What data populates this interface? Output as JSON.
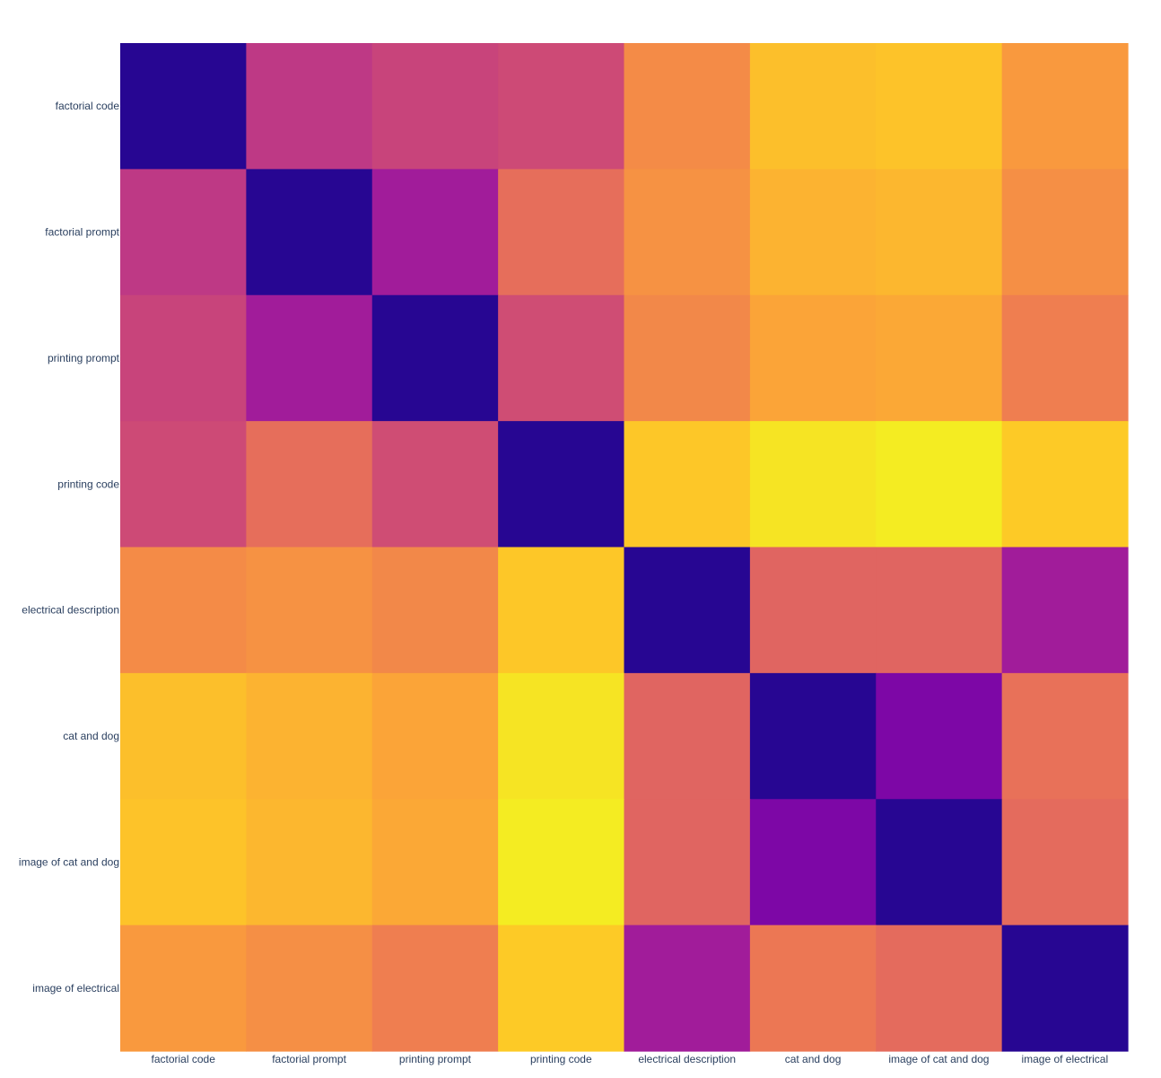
{
  "chart_data": {
    "type": "heatmap",
    "title": "",
    "xlabel": "",
    "ylabel": "",
    "colorscale": "plasma",
    "colorscale_stops": [
      "#0d0887",
      "#46039f",
      "#7201a8",
      "#9c179e",
      "#bd3786",
      "#d8576b",
      "#ed7953",
      "#fb9f3a",
      "#fdca26",
      "#f0f921"
    ],
    "zrange": [
      0,
      1
    ],
    "colorbar": false,
    "x": [
      "factorial code",
      "factorial prompt",
      "printing prompt",
      "printing code",
      "electrical description",
      "cat and dog",
      "image of cat and dog",
      "image of electrical"
    ],
    "y": [
      "factorial code",
      "factorial prompt",
      "printing prompt",
      "printing code",
      "electrical description",
      "cat and dog",
      "image of cat and dog",
      "image of electrical"
    ],
    "z": [
      [
        0.05,
        0.45,
        0.49,
        0.51,
        0.72,
        0.86,
        0.87,
        0.76
      ],
      [
        0.45,
        0.05,
        0.35,
        0.63,
        0.74,
        0.83,
        0.84,
        0.73
      ],
      [
        0.49,
        0.35,
        0.05,
        0.52,
        0.71,
        0.79,
        0.8,
        0.68
      ],
      [
        0.51,
        0.63,
        0.52,
        0.05,
        0.88,
        0.95,
        0.97,
        0.89
      ],
      [
        0.72,
        0.74,
        0.71,
        0.88,
        0.05,
        0.6,
        0.6,
        0.35
      ],
      [
        0.86,
        0.83,
        0.79,
        0.95,
        0.6,
        0.05,
        0.25,
        0.64
      ],
      [
        0.87,
        0.84,
        0.8,
        0.97,
        0.6,
        0.25,
        0.05,
        0.62
      ],
      [
        0.76,
        0.73,
        0.68,
        0.89,
        0.35,
        0.66,
        0.62,
        0.05
      ]
    ]
  }
}
